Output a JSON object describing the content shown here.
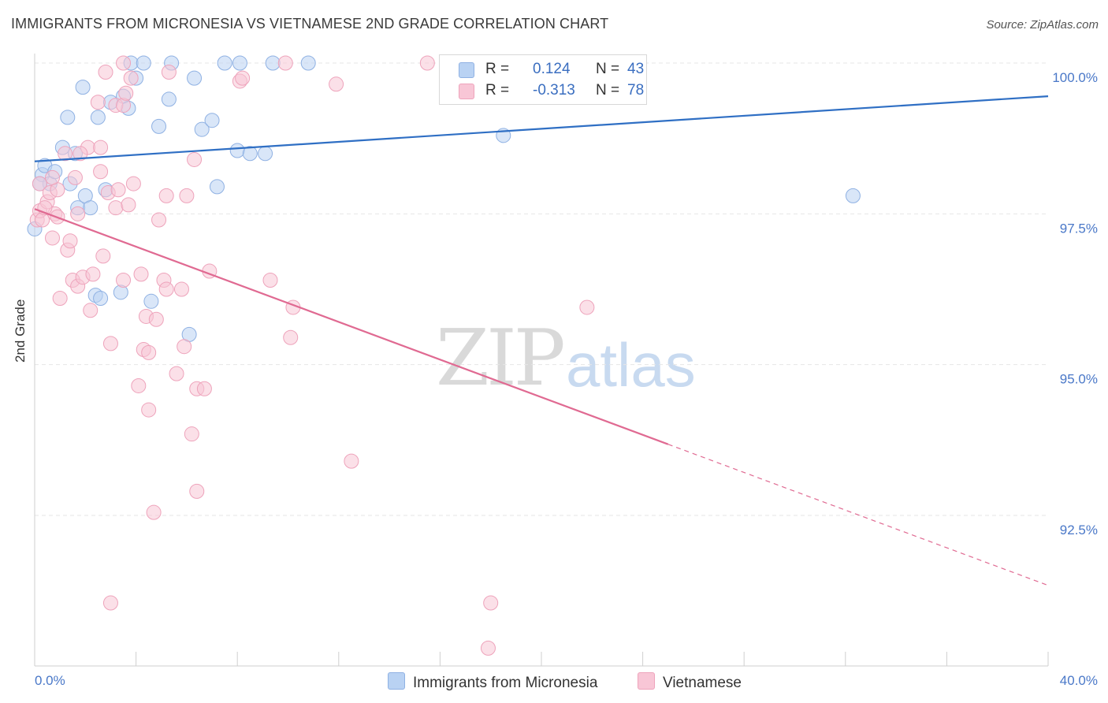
{
  "title": "IMMIGRANTS FROM MICRONESIA VS VIETNAMESE 2ND GRADE CORRELATION CHART",
  "source": "Source: ZipAtlas.com",
  "watermark": {
    "zip": "ZIP",
    "atlas": "atlas"
  },
  "legend": {
    "rows": [
      {
        "r_label": "R =",
        "r_value": "0.124",
        "n_label": "N =",
        "n_value": "43"
      },
      {
        "r_label": "R =",
        "r_value": "-0.313",
        "n_label": "N =",
        "n_value": "78"
      }
    ]
  },
  "bottom_legend": [
    "Immigrants from Micronesia",
    "Vietnamese"
  ],
  "colors": {
    "blue_fill": "#b9d2f3",
    "blue_stroke": "#8fb1e3",
    "blue_line": "#2f6fc4",
    "pink_fill": "#f8c6d6",
    "pink_stroke": "#eea3bb",
    "pink_line": "#e06a92",
    "axis_text": "#4a78c8",
    "grid": "#e6e6e6"
  },
  "chart_data": {
    "type": "scatter",
    "xlabel": "",
    "ylabel": "2nd Grade",
    "xlim": [
      0.0,
      40.0
    ],
    "ylim": [
      90.0,
      100.2
    ],
    "x_tick_labels": [
      "0.0%",
      "40.0%"
    ],
    "y_ticks": [
      92.5,
      95.0,
      97.5,
      100.0
    ],
    "y_tick_labels": [
      "92.5%",
      "95.0%",
      "97.5%",
      "100.0%"
    ],
    "grid": true,
    "series": [
      {
        "name": "Immigrants from Micronesia",
        "color": "blue",
        "trend": {
          "x0": 0.0,
          "y0": 98.37,
          "x1": 40.0,
          "y1": 99.45,
          "solid_until": 40.0
        },
        "points": [
          [
            0.0,
            97.25
          ],
          [
            0.3,
            98.15
          ],
          [
            0.4,
            98.3
          ],
          [
            0.6,
            98.0
          ],
          [
            0.8,
            98.2
          ],
          [
            1.1,
            98.6
          ],
          [
            1.3,
            99.1
          ],
          [
            1.6,
            98.5
          ],
          [
            1.4,
            98.0
          ],
          [
            1.7,
            97.6
          ],
          [
            1.9,
            99.6
          ],
          [
            2.0,
            97.8
          ],
          [
            2.2,
            97.6
          ],
          [
            2.5,
            99.1
          ],
          [
            2.8,
            97.9
          ],
          [
            3.0,
            99.35
          ],
          [
            3.5,
            99.45
          ],
          [
            3.7,
            99.25
          ],
          [
            3.8,
            100.0
          ],
          [
            4.0,
            99.75
          ],
          [
            4.3,
            100.0
          ],
          [
            4.9,
            98.95
          ],
          [
            5.3,
            99.4
          ],
          [
            5.4,
            100.0
          ],
          [
            6.3,
            99.75
          ],
          [
            6.6,
            98.9
          ],
          [
            7.0,
            99.05
          ],
          [
            7.2,
            97.95
          ],
          [
            7.5,
            100.0
          ],
          [
            8.0,
            98.55
          ],
          [
            8.1,
            100.0
          ],
          [
            8.5,
            98.5
          ],
          [
            9.1,
            98.5
          ],
          [
            9.4,
            100.0
          ],
          [
            10.8,
            100.0
          ],
          [
            2.4,
            96.15
          ],
          [
            2.6,
            96.1
          ],
          [
            3.4,
            96.2
          ],
          [
            4.6,
            96.05
          ],
          [
            6.1,
            95.5
          ],
          [
            18.5,
            98.8
          ],
          [
            32.3,
            97.8
          ],
          [
            0.2,
            98.0
          ]
        ]
      },
      {
        "name": "Vietnamese",
        "color": "pink",
        "trend": {
          "x0": 0.0,
          "y0": 97.58,
          "x1": 40.0,
          "y1": 91.34,
          "solid_until": 25.0
        },
        "points": [
          [
            0.1,
            97.4
          ],
          [
            0.2,
            97.55
          ],
          [
            0.2,
            98.0
          ],
          [
            0.3,
            97.4
          ],
          [
            0.5,
            97.7
          ],
          [
            0.6,
            97.85
          ],
          [
            0.7,
            97.1
          ],
          [
            0.8,
            97.5
          ],
          [
            0.9,
            97.9
          ],
          [
            0.7,
            98.1
          ],
          [
            1.0,
            96.1
          ],
          [
            1.2,
            98.5
          ],
          [
            1.3,
            96.9
          ],
          [
            1.4,
            97.05
          ],
          [
            1.5,
            96.4
          ],
          [
            1.6,
            98.1
          ],
          [
            1.7,
            97.5
          ],
          [
            1.7,
            96.3
          ],
          [
            1.9,
            96.45
          ],
          [
            2.1,
            98.6
          ],
          [
            2.2,
            95.9
          ],
          [
            2.3,
            96.5
          ],
          [
            2.5,
            99.35
          ],
          [
            2.6,
            98.2
          ],
          [
            2.7,
            96.8
          ],
          [
            2.8,
            99.85
          ],
          [
            2.9,
            97.85
          ],
          [
            3.0,
            95.35
          ],
          [
            3.2,
            99.3
          ],
          [
            3.2,
            97.6
          ],
          [
            3.3,
            97.9
          ],
          [
            3.5,
            99.3
          ],
          [
            3.5,
            96.4
          ],
          [
            3.6,
            99.5
          ],
          [
            3.5,
            100.0
          ],
          [
            3.7,
            97.65
          ],
          [
            3.8,
            99.75
          ],
          [
            3.9,
            98.0
          ],
          [
            4.1,
            94.65
          ],
          [
            4.2,
            96.5
          ],
          [
            4.3,
            95.25
          ],
          [
            4.4,
            95.8
          ],
          [
            4.5,
            95.2
          ],
          [
            4.5,
            94.25
          ],
          [
            4.7,
            92.55
          ],
          [
            4.8,
            95.75
          ],
          [
            4.9,
            97.4
          ],
          [
            5.1,
            96.4
          ],
          [
            5.2,
            96.25
          ],
          [
            5.2,
            97.8
          ],
          [
            5.3,
            99.85
          ],
          [
            5.6,
            94.85
          ],
          [
            5.8,
            96.25
          ],
          [
            5.9,
            95.3
          ],
          [
            6.0,
            97.8
          ],
          [
            6.2,
            93.85
          ],
          [
            6.3,
            98.4
          ],
          [
            6.4,
            94.6
          ],
          [
            6.4,
            92.9
          ],
          [
            6.7,
            94.6
          ],
          [
            6.9,
            96.55
          ],
          [
            8.1,
            99.7
          ],
          [
            8.2,
            99.75
          ],
          [
            9.3,
            96.4
          ],
          [
            9.9,
            100.0
          ],
          [
            10.2,
            95.95
          ],
          [
            10.1,
            95.45
          ],
          [
            11.9,
            99.65
          ],
          [
            12.5,
            93.4
          ],
          [
            15.5,
            100.0
          ],
          [
            18.0,
            91.05
          ],
          [
            21.8,
            95.95
          ],
          [
            17.9,
            90.3
          ],
          [
            3.0,
            91.05
          ],
          [
            0.4,
            97.6
          ],
          [
            1.8,
            98.5
          ],
          [
            2.6,
            98.6
          ],
          [
            0.9,
            97.45
          ]
        ]
      }
    ]
  }
}
